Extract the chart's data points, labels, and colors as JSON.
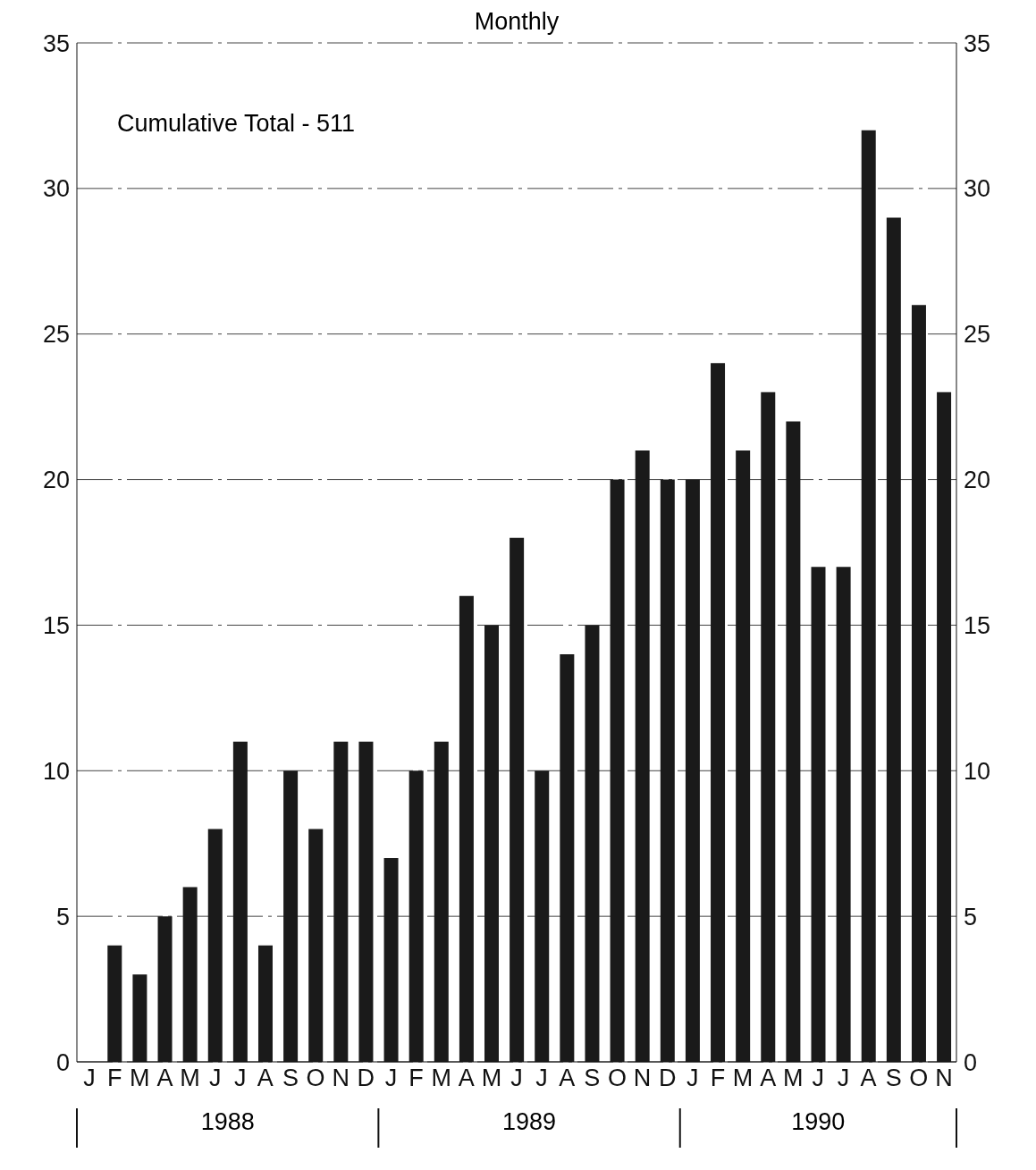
{
  "chart_data": {
    "type": "bar",
    "title": "Monthly",
    "categories": [
      "J",
      "F",
      "M",
      "A",
      "M",
      "J",
      "J",
      "A",
      "S",
      "O",
      "N",
      "D",
      "J",
      "F",
      "M",
      "A",
      "M",
      "J",
      "J",
      "A",
      "S",
      "O",
      "N",
      "D",
      "J",
      "F",
      "M",
      "A",
      "M",
      "J",
      "J",
      "A",
      "S",
      "O",
      "N"
    ],
    "values": [
      null,
      4,
      3,
      5,
      6,
      8,
      11,
      4,
      10,
      8,
      11,
      11,
      7,
      10,
      11,
      16,
      15,
      18,
      10,
      14,
      15,
      20,
      21,
      20,
      20,
      24,
      21,
      23,
      22,
      17,
      17,
      32,
      29,
      26,
      23
    ],
    "color": "#1a1a1a",
    "ylim": [
      0,
      35
    ],
    "yticks": [
      0,
      5,
      10,
      15,
      20,
      25,
      30,
      35
    ],
    "y2lim": [
      0,
      35
    ],
    "y2ticks": [
      0,
      5,
      10,
      15,
      20,
      25,
      30,
      35
    ],
    "grid": "y",
    "annotations": [
      "Cumulative Total - 511",
      "1988",
      "1989",
      "1990"
    ]
  }
}
